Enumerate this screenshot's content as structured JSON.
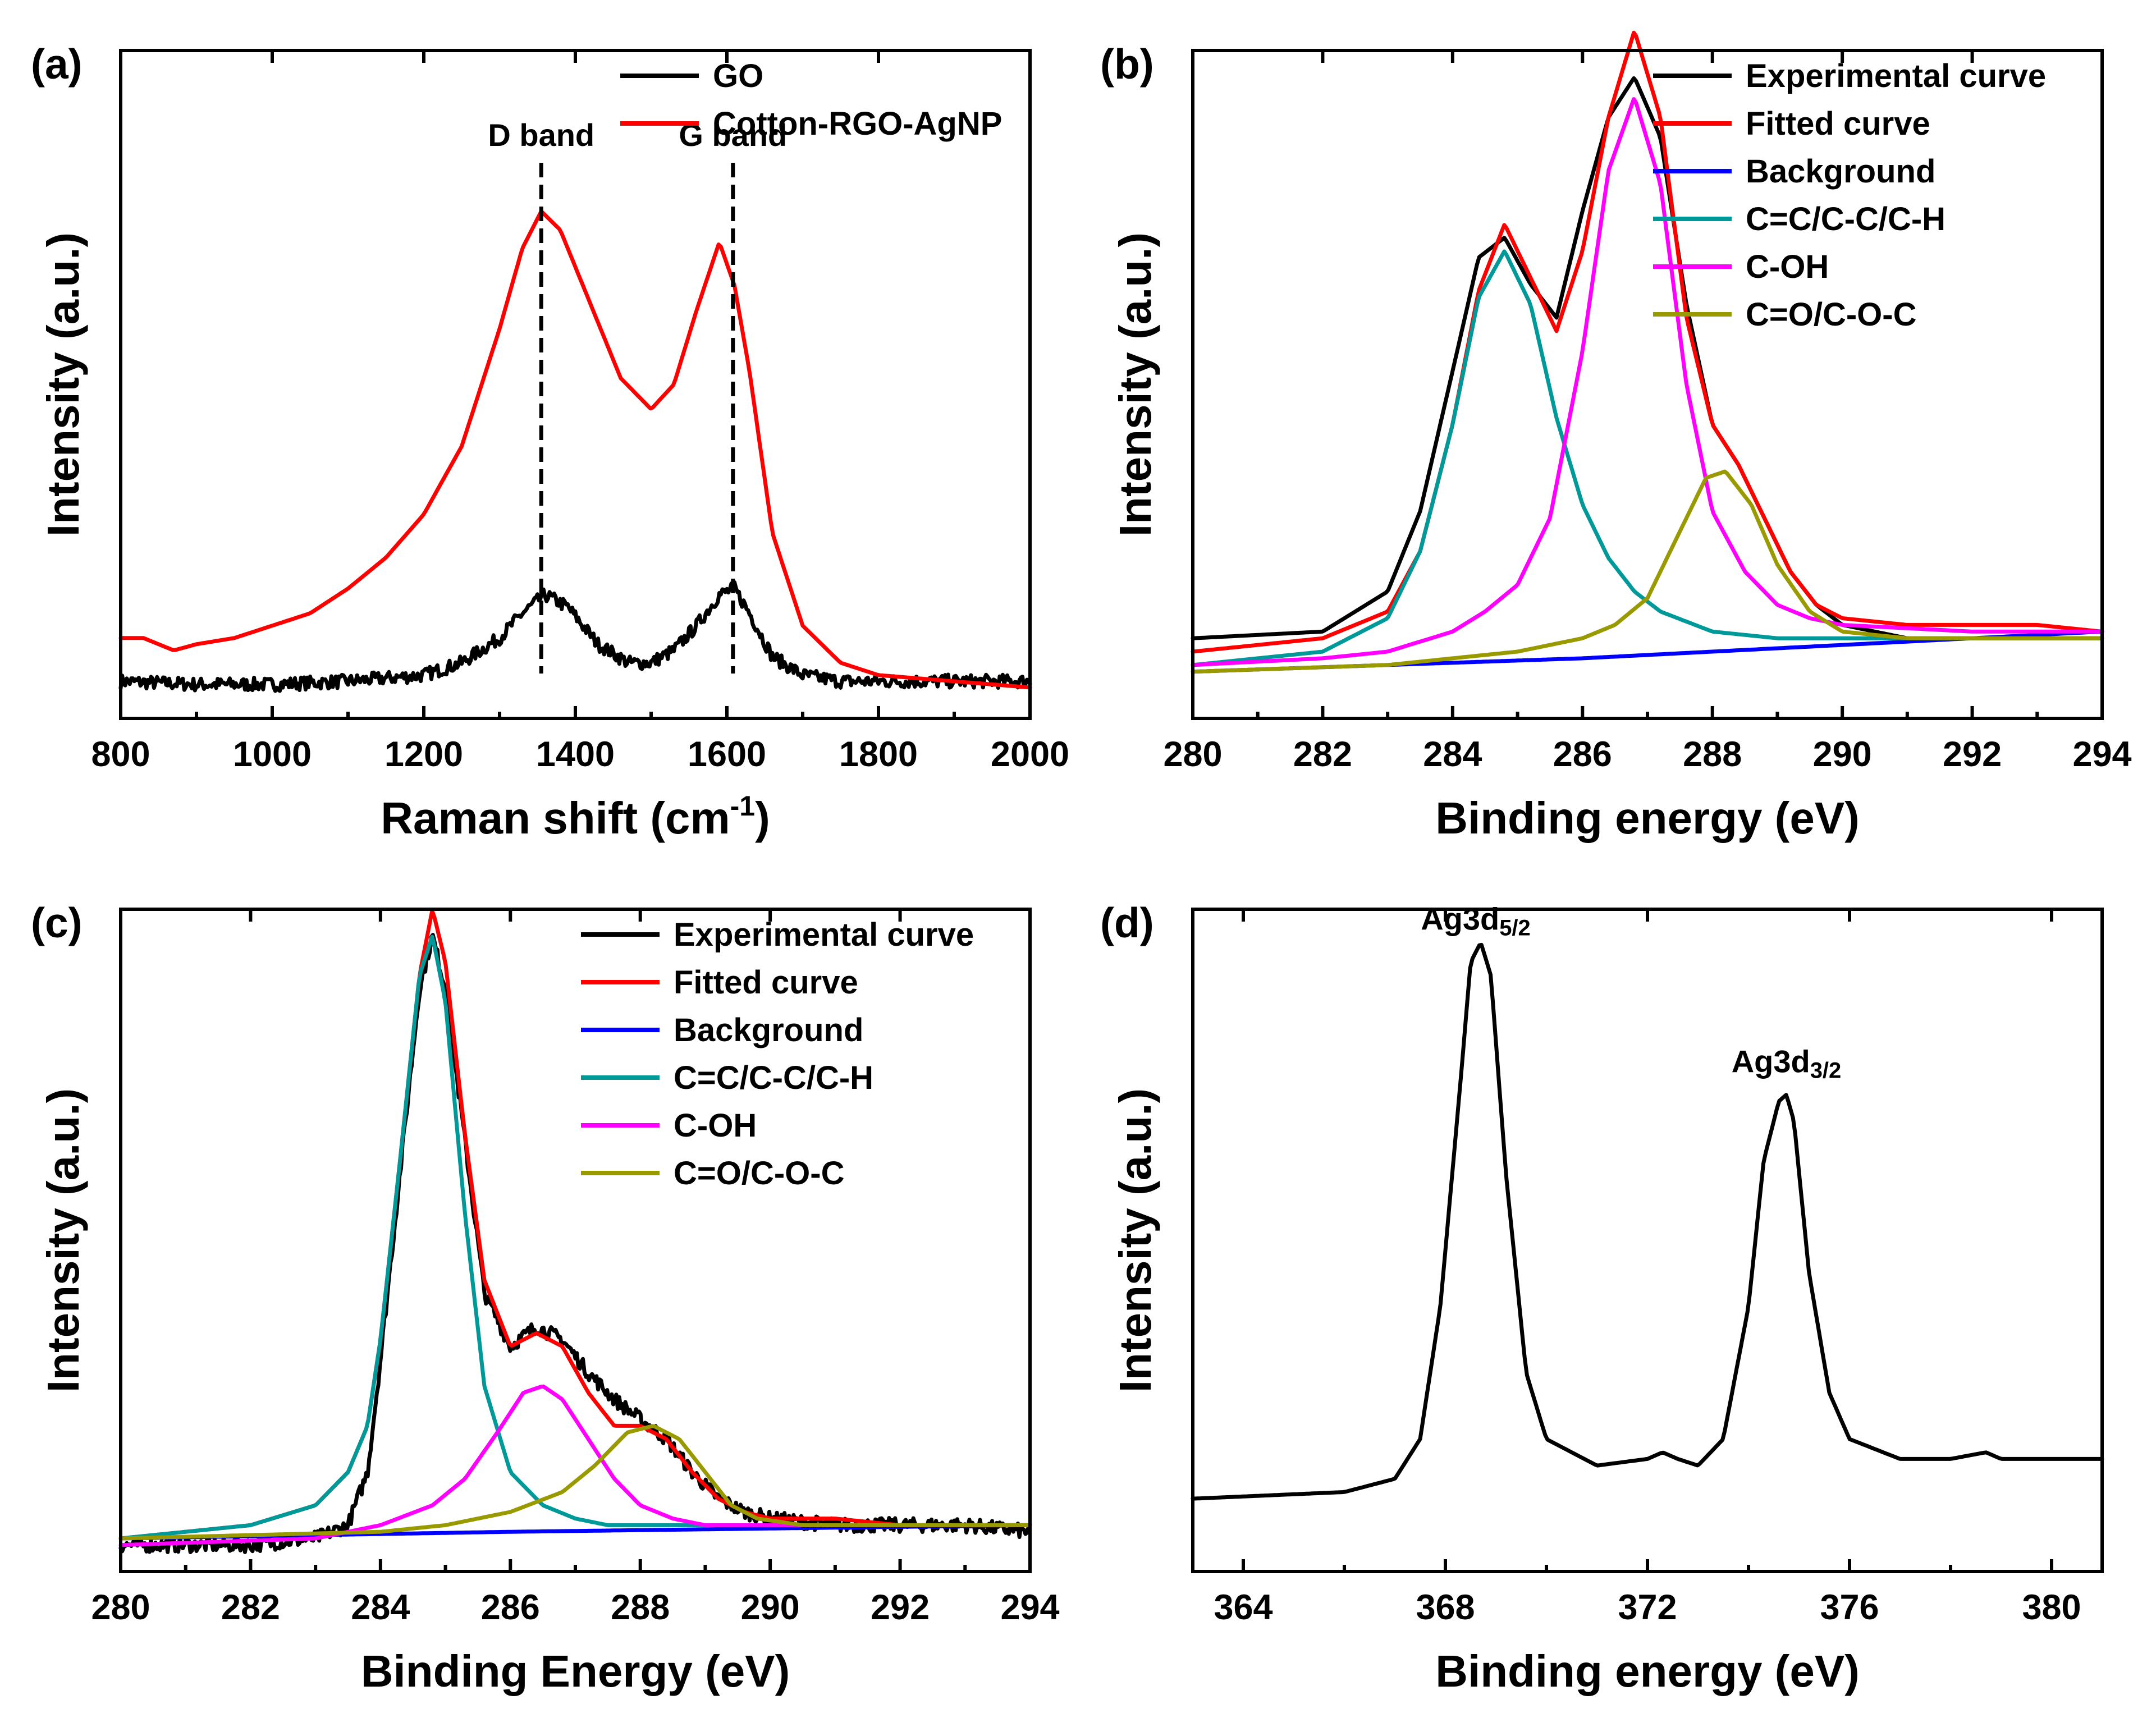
{
  "chart_data": [
    {
      "panel": "(a)",
      "type": "line",
      "xlabel": "Raman shift (cm",
      "xlabel_sup": "-1",
      "xlabel_tail": ")",
      "ylabel": "Intensity (a.u.)",
      "xlim": [
        800,
        2000
      ],
      "ylim": [
        0,
        1.08
      ],
      "xticks": [
        800,
        1000,
        1200,
        1400,
        1600,
        1800,
        2000
      ],
      "legend_position": "top-right",
      "series": [
        {
          "name": "GO",
          "color": "#000000",
          "noise": true,
          "x": [
            800,
            900,
            1000,
            1100,
            1200,
            1250,
            1300,
            1330,
            1360,
            1390,
            1430,
            1470,
            1500,
            1530,
            1560,
            1590,
            1610,
            1630,
            1660,
            1700,
            1750,
            1800,
            1900,
            2000
          ],
          "y": [
            0.06,
            0.055,
            0.055,
            0.06,
            0.07,
            0.09,
            0.13,
            0.17,
            0.2,
            0.18,
            0.12,
            0.09,
            0.09,
            0.11,
            0.15,
            0.2,
            0.21,
            0.17,
            0.1,
            0.07,
            0.06,
            0.06,
            0.06,
            0.06
          ]
        },
        {
          "name": "Cotton-RGO-AgNP",
          "color": "#ff0000",
          "noise": false,
          "x": [
            800,
            830,
            870,
            900,
            950,
            1000,
            1050,
            1100,
            1150,
            1200,
            1250,
            1300,
            1330,
            1355,
            1380,
            1420,
            1460,
            1500,
            1530,
            1560,
            1590,
            1610,
            1630,
            1660,
            1700,
            1750,
            1800,
            1900,
            2000
          ],
          "y": [
            0.13,
            0.13,
            0.11,
            0.12,
            0.13,
            0.15,
            0.17,
            0.21,
            0.26,
            0.33,
            0.44,
            0.63,
            0.76,
            0.82,
            0.79,
            0.67,
            0.55,
            0.5,
            0.54,
            0.66,
            0.77,
            0.7,
            0.56,
            0.3,
            0.15,
            0.09,
            0.07,
            0.06,
            0.05
          ]
        }
      ],
      "markers": [
        {
          "x": 1355,
          "label": "D band"
        },
        {
          "x": 1608,
          "label": "G band"
        }
      ]
    },
    {
      "panel": "(b)",
      "type": "line",
      "xlabel": "Binding energy (eV)",
      "ylabel": "Intensity (a.u.)",
      "xlim": [
        280,
        294
      ],
      "ylim": [
        0,
        1.0
      ],
      "xticks": [
        280,
        282,
        284,
        286,
        288,
        290,
        292,
        294
      ],
      "legend_position": "top-right",
      "series": [
        {
          "name": "Experimental curve",
          "color": "#000000",
          "x": [
            280,
            282,
            283,
            283.5,
            284,
            284.4,
            284.8,
            285.2,
            285.6,
            286,
            286.4,
            286.8,
            287.2,
            287.6,
            288,
            288.4,
            288.8,
            289.2,
            289.6,
            290,
            291,
            292,
            293,
            294
          ],
          "y": [
            0.12,
            0.13,
            0.19,
            0.31,
            0.52,
            0.69,
            0.72,
            0.65,
            0.6,
            0.76,
            0.9,
            0.96,
            0.87,
            0.62,
            0.44,
            0.38,
            0.3,
            0.22,
            0.17,
            0.14,
            0.12,
            0.12,
            0.12,
            0.12
          ]
        },
        {
          "name": "Fitted curve",
          "color": "#ff0000",
          "x": [
            280,
            282,
            283,
            283.5,
            284,
            284.4,
            284.8,
            285.2,
            285.6,
            286,
            286.4,
            286.8,
            287.2,
            287.6,
            288,
            288.4,
            288.8,
            289.2,
            289.6,
            290,
            291,
            292,
            293,
            294
          ],
          "y": [
            0.1,
            0.12,
            0.16,
            0.25,
            0.44,
            0.64,
            0.74,
            0.66,
            0.58,
            0.7,
            0.9,
            1.03,
            0.9,
            0.6,
            0.44,
            0.38,
            0.3,
            0.22,
            0.17,
            0.15,
            0.14,
            0.14,
            0.14,
            0.13
          ]
        },
        {
          "name": "Background",
          "color": "#0000ff",
          "x": [
            280,
            286,
            294
          ],
          "y": [
            0.07,
            0.09,
            0.13
          ]
        },
        {
          "name": "C=C/C-C/C-H",
          "color": "#009999",
          "x": [
            280,
            282,
            283,
            283.5,
            284,
            284.4,
            284.8,
            285.2,
            285.6,
            286,
            286.4,
            286.8,
            287.2,
            288,
            289,
            290,
            292,
            294
          ],
          "y": [
            0.08,
            0.1,
            0.15,
            0.25,
            0.44,
            0.63,
            0.7,
            0.62,
            0.45,
            0.32,
            0.24,
            0.19,
            0.16,
            0.13,
            0.12,
            0.12,
            0.12,
            0.12
          ]
        },
        {
          "name": "C-OH",
          "color": "#ff00ff",
          "x": [
            280,
            282,
            283,
            284,
            284.5,
            285,
            285.5,
            286,
            286.4,
            286.8,
            287.2,
            287.6,
            288,
            288.5,
            289,
            289.5,
            290,
            292,
            294
          ],
          "y": [
            0.08,
            0.09,
            0.1,
            0.13,
            0.16,
            0.2,
            0.3,
            0.55,
            0.82,
            0.93,
            0.8,
            0.5,
            0.31,
            0.22,
            0.17,
            0.15,
            0.14,
            0.13,
            0.13
          ]
        },
        {
          "name": "C=O/C-O-C",
          "color": "#999900",
          "x": [
            280,
            283,
            285,
            286,
            286.5,
            287,
            287.5,
            287.9,
            288.2,
            288.6,
            289,
            289.5,
            290,
            291,
            292,
            294
          ],
          "y": [
            0.07,
            0.08,
            0.1,
            0.12,
            0.14,
            0.18,
            0.28,
            0.36,
            0.37,
            0.32,
            0.23,
            0.16,
            0.13,
            0.12,
            0.12,
            0.12
          ]
        }
      ]
    },
    {
      "panel": "(c)",
      "type": "line",
      "xlabel": "Binding Energy (eV)",
      "ylabel": "Intensity (a.u.)",
      "xlim": [
        280,
        294
      ],
      "ylim": [
        0,
        1.0
      ],
      "xticks": [
        280,
        282,
        284,
        286,
        288,
        290,
        292,
        294
      ],
      "legend_position": "top-right",
      "series": [
        {
          "name": "Experimental curve",
          "color": "#000000",
          "noise": true,
          "x": [
            280,
            282,
            283,
            283.5,
            283.8,
            284,
            284.3,
            284.6,
            284.8,
            285,
            285.3,
            285.6,
            286,
            286.4,
            286.8,
            287.2,
            287.6,
            288,
            288.4,
            288.8,
            289.2,
            289.6,
            290,
            291,
            292,
            293,
            294
          ],
          "y": [
            0.04,
            0.04,
            0.05,
            0.07,
            0.15,
            0.32,
            0.6,
            0.88,
            0.96,
            0.88,
            0.65,
            0.42,
            0.34,
            0.37,
            0.35,
            0.3,
            0.26,
            0.23,
            0.2,
            0.15,
            0.11,
            0.09,
            0.08,
            0.07,
            0.07,
            0.07,
            0.06
          ]
        },
        {
          "name": "Fitted curve",
          "color": "#ff0000",
          "noise": false,
          "x": [
            280,
            282,
            283,
            283.5,
            283.8,
            284,
            284.3,
            284.6,
            284.8,
            285,
            285.3,
            285.6,
            286,
            286.4,
            286.8,
            287.2,
            287.6,
            288,
            288.4,
            288.8,
            289.2,
            289.6,
            290,
            291,
            292,
            293,
            294
          ],
          "y": [
            0.05,
            0.07,
            0.1,
            0.15,
            0.22,
            0.35,
            0.62,
            0.9,
            1.0,
            0.92,
            0.66,
            0.44,
            0.34,
            0.36,
            0.34,
            0.27,
            0.22,
            0.22,
            0.2,
            0.15,
            0.11,
            0.09,
            0.08,
            0.08,
            0.07,
            0.07,
            0.07
          ]
        },
        {
          "name": "Background",
          "color": "#0000ff",
          "noise": false,
          "x": [
            280,
            286,
            294
          ],
          "y": [
            0.05,
            0.06,
            0.07
          ]
        },
        {
          "name": "C=C/C-C/C-H",
          "color": "#009999",
          "noise": false,
          "x": [
            280,
            282,
            283,
            283.5,
            283.8,
            284,
            284.3,
            284.6,
            284.8,
            285,
            285.3,
            285.6,
            286,
            286.5,
            287,
            287.5,
            288,
            289,
            290,
            292,
            294
          ],
          "y": [
            0.05,
            0.07,
            0.1,
            0.15,
            0.22,
            0.35,
            0.62,
            0.9,
            0.96,
            0.86,
            0.54,
            0.28,
            0.15,
            0.1,
            0.08,
            0.07,
            0.07,
            0.07,
            0.07,
            0.07,
            0.07
          ]
        },
        {
          "name": "C-OH",
          "color": "#ff00ff",
          "noise": false,
          "x": [
            280,
            283,
            284,
            284.8,
            285.3,
            285.8,
            286.2,
            286.5,
            286.8,
            287.2,
            287.6,
            288,
            288.5,
            289,
            290,
            292,
            294
          ],
          "y": [
            0.04,
            0.05,
            0.07,
            0.1,
            0.14,
            0.21,
            0.27,
            0.28,
            0.26,
            0.2,
            0.14,
            0.1,
            0.08,
            0.07,
            0.07,
            0.07,
            0.07
          ]
        },
        {
          "name": "C=O/C-O-C",
          "color": "#999900",
          "noise": false,
          "x": [
            280,
            284,
            285,
            286,
            286.8,
            287.3,
            287.8,
            288.2,
            288.6,
            289,
            289.4,
            289.8,
            290.5,
            292,
            294
          ],
          "y": [
            0.05,
            0.06,
            0.07,
            0.09,
            0.12,
            0.16,
            0.21,
            0.22,
            0.2,
            0.15,
            0.1,
            0.08,
            0.07,
            0.07,
            0.07
          ]
        }
      ]
    },
    {
      "panel": "(d)",
      "type": "line",
      "xlabel": "Binding energy (eV)",
      "ylabel": "Intensity (a.u.)",
      "xlim": [
        363,
        381
      ],
      "ylim": [
        0,
        1.0
      ],
      "xticks": [
        364,
        368,
        372,
        376,
        380
      ],
      "series": [
        {
          "name": "Ag3d",
          "color": "#000000",
          "x": [
            363,
            366,
            367,
            367.5,
            367.9,
            368.3,
            368.5,
            368.7,
            368.9,
            369.2,
            369.6,
            370,
            371,
            372,
            372.3,
            372.6,
            373,
            373.5,
            374,
            374.3,
            374.6,
            374.75,
            374.9,
            375.2,
            375.6,
            376,
            377,
            378,
            378.7,
            379,
            380,
            381
          ],
          "y": [
            0.11,
            0.12,
            0.14,
            0.2,
            0.4,
            0.74,
            0.92,
            0.95,
            0.9,
            0.6,
            0.3,
            0.2,
            0.16,
            0.17,
            0.18,
            0.17,
            0.16,
            0.2,
            0.4,
            0.62,
            0.71,
            0.72,
            0.68,
            0.45,
            0.27,
            0.2,
            0.17,
            0.17,
            0.18,
            0.17,
            0.17,
            0.17
          ]
        }
      ],
      "annotations": [
        {
          "base": "Ag3d",
          "sub": "5/2",
          "x": 368.6
        },
        {
          "base": "Ag3d",
          "sub": "3/2",
          "x": 374.75
        }
      ]
    }
  ]
}
